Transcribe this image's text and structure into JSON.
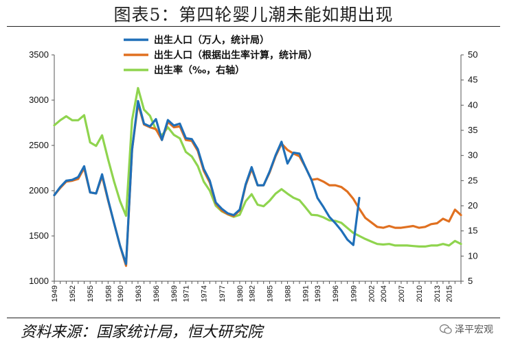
{
  "title": "图表5：第四轮婴儿潮未能如期出现",
  "source": "资料来源：国家统计局，恒大研究院",
  "watermark": "泽平宏观",
  "chart_data": {
    "type": "line",
    "x": [
      1949,
      1950,
      1951,
      1952,
      1953,
      1954,
      1955,
      1956,
      1957,
      1958,
      1959,
      1960,
      1961,
      1962,
      1963,
      1964,
      1965,
      1966,
      1967,
      1968,
      1969,
      1970,
      1971,
      1972,
      1973,
      1974,
      1975,
      1976,
      1977,
      1978,
      1979,
      1980,
      1981,
      1982,
      1983,
      1984,
      1985,
      1986,
      1987,
      1988,
      1989,
      1990,
      1991,
      1992,
      1993,
      1994,
      1995,
      1996,
      1997,
      1998,
      1999,
      2000,
      2001,
      2002,
      2003,
      2004,
      2005,
      2006,
      2007,
      2008,
      2009,
      2010,
      2011,
      2012,
      2013,
      2014,
      2015,
      2016,
      2017
    ],
    "x_tick_labels": [
      "1949",
      "1952",
      "1955",
      "1958",
      "1960",
      "1963",
      "1966",
      "1969",
      "1971",
      "1974",
      "1977",
      "1980",
      "1982",
      "1985",
      "1988",
      "1991",
      "1993",
      "1996",
      "1999",
      "2002",
      "2004",
      "2007",
      "2010",
      "2013",
      "2015"
    ],
    "y_left": {
      "ylim": [
        1000,
        3500
      ],
      "ticks": [
        1000,
        1500,
        2000,
        2500,
        3000,
        3500
      ]
    },
    "y_right": {
      "ylim": [
        5,
        50
      ],
      "ticks": [
        5,
        10,
        15,
        20,
        25,
        30,
        35,
        40,
        45,
        50
      ]
    },
    "legend_placement": "top-center",
    "grid": false,
    "series": [
      {
        "name": "出生人口（万人，统计局）",
        "color": "#1f6fb8",
        "axis": "left",
        "values": [
          1950,
          2040,
          2110,
          2120,
          2150,
          2270,
          1980,
          1970,
          2180,
          1900,
          1640,
          1390,
          1190,
          2450,
          2990,
          2740,
          2710,
          2790,
          2560,
          2780,
          2720,
          2740,
          2580,
          2570,
          2460,
          2240,
          2110,
          1870,
          1800,
          1750,
          1730,
          1790,
          2070,
          2260,
          2060,
          2060,
          2210,
          2390,
          2540,
          2300,
          2420,
          2410,
          2260,
          2120,
          1920,
          1820,
          1710,
          1640,
          1560,
          1460,
          1400,
          1920,
          null,
          null,
          null,
          null,
          null,
          null,
          null,
          null,
          null,
          null,
          null,
          null,
          null,
          null,
          null,
          null,
          null
        ]
      },
      {
        "name": "出生人口（根据出生率计算，统计局）",
        "color": "#e07020",
        "axis": "left",
        "values": [
          1950,
          2030,
          2100,
          2110,
          2130,
          2250,
          1980,
          1970,
          2160,
          1890,
          1640,
          1390,
          1170,
          2450,
          2960,
          2730,
          2700,
          2680,
          2560,
          2760,
          2700,
          2710,
          2560,
          2550,
          2440,
          2220,
          2090,
          1860,
          1780,
          1740,
          1720,
          1780,
          2060,
          2240,
          2060,
          2060,
          2200,
          2380,
          2520,
          2450,
          2410,
          2380,
          2260,
          2120,
          2130,
          2100,
          2060,
          2060,
          2040,
          1990,
          1910,
          1800,
          1700,
          1650,
          1600,
          1590,
          1610,
          1590,
          1590,
          1600,
          1610,
          1590,
          1600,
          1630,
          1640,
          1690,
          1660,
          1790,
          1730
        ]
      },
      {
        "name": "出生率（‰，右轴）",
        "color": "#8fd44e",
        "axis": "right",
        "values": [
          36.0,
          37.0,
          37.8,
          37.0,
          37.0,
          38.0,
          32.6,
          31.9,
          34.0,
          29.2,
          24.8,
          20.9,
          18.0,
          37.0,
          43.4,
          39.1,
          37.9,
          35.1,
          34.0,
          35.6,
          34.1,
          33.4,
          30.7,
          29.8,
          27.9,
          24.8,
          23.0,
          20.0,
          18.9,
          18.3,
          17.8,
          18.2,
          20.9,
          22.3,
          20.2,
          19.9,
          21.0,
          22.4,
          23.3,
          22.4,
          21.6,
          21.1,
          19.7,
          18.2,
          18.1,
          17.7,
          17.1,
          17.0,
          16.6,
          15.6,
          14.6,
          14.0,
          13.4,
          12.9,
          12.4,
          12.3,
          12.4,
          12.1,
          12.1,
          12.1,
          12.0,
          11.9,
          11.9,
          12.1,
          12.1,
          12.4,
          12.1,
          13.0,
          12.4
        ]
      }
    ]
  }
}
